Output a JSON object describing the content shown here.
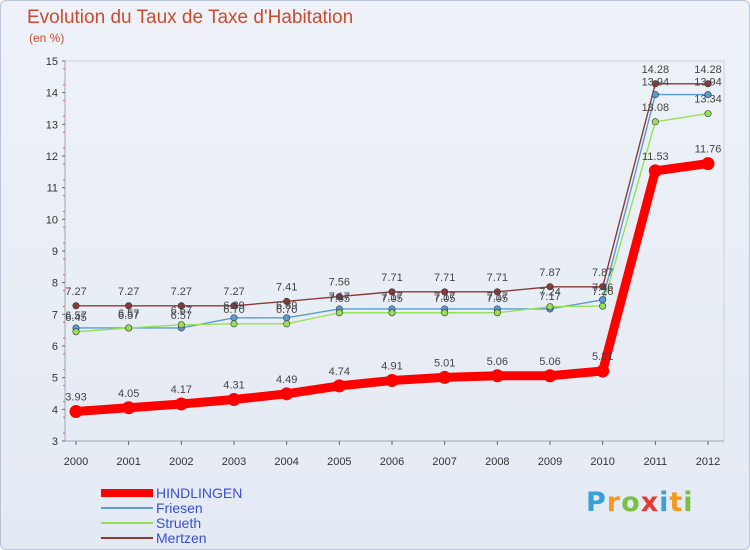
{
  "logo": {
    "letters": [
      "P",
      "r",
      "o",
      "x",
      "i",
      "t",
      "i"
    ],
    "colors": [
      "#3aa0d8",
      "#f39a1e",
      "#7bc043",
      "#e53935",
      "#3aa0d8",
      "#f39a1e",
      "#7bc043"
    ]
  },
  "chart_data": {
    "type": "line",
    "title": "Evolution du Taux de Taxe d'Habitation",
    "subtitle": "(en %)",
    "xlabel": "",
    "ylabel": "",
    "x": [
      "2000",
      "2001",
      "2002",
      "2003",
      "2004",
      "2005",
      "2006",
      "2007",
      "2008",
      "2009",
      "2010",
      "2011",
      "2012"
    ],
    "ylim": [
      3,
      15
    ],
    "yticks": [
      3,
      4,
      5,
      6,
      7,
      8,
      9,
      10,
      11,
      12,
      13,
      14,
      15
    ],
    "grid": false,
    "legend": "bottom-left",
    "series": [
      {
        "name": "HINDLINGEN",
        "color": "#ff0000",
        "values": [
          3.93,
          4.05,
          4.17,
          4.31,
          4.49,
          4.74,
          4.91,
          5.01,
          5.06,
          5.06,
          5.21,
          11.53,
          11.76
        ],
        "labels": [
          "3.93",
          "4.05",
          "4.17",
          "4.31",
          "4.49",
          "4.74",
          "4.91",
          "5.01",
          "5.06",
          "5.06",
          "5.21",
          "11.53",
          "11.76"
        ]
      },
      {
        "name": "Friesen",
        "color": "#5b9bd5",
        "values": [
          6.57,
          6.57,
          6.57,
          6.89,
          6.89,
          7.17,
          7.17,
          7.17,
          7.17,
          7.17,
          7.46,
          13.94,
          13.94
        ],
        "labels": [
          "6.57",
          "6.57",
          "6.57",
          "6.89",
          "6.89",
          "7.17",
          "7.17",
          "7.17",
          "7.17",
          "7.17",
          "7.46",
          "13.94",
          "13.94"
        ]
      },
      {
        "name": "Strueth",
        "color": "#99e05a",
        "values": [
          6.45,
          6.57,
          6.67,
          6.7,
          6.7,
          7.05,
          7.05,
          7.05,
          7.05,
          7.24,
          7.26,
          13.08,
          13.34
        ],
        "labels": [
          "6.45",
          "6.57",
          "6.67",
          "6.70",
          "6.70",
          "7.05",
          "7.05",
          "7.05",
          "7.05",
          "7.24",
          "7.26",
          "13.08",
          "13.34"
        ]
      },
      {
        "name": "Mertzen",
        "color": "#8b3a3a",
        "values": [
          7.27,
          7.27,
          7.27,
          7.27,
          7.41,
          7.56,
          7.71,
          7.71,
          7.71,
          7.87,
          7.87,
          14.28,
          14.28
        ],
        "labels": [
          "7.27",
          "7.27",
          "7.27",
          "7.27",
          "7.41",
          "7.56",
          "7.71",
          "7.71",
          "7.71",
          "7.87",
          "7.87",
          "14.28",
          "14.28"
        ]
      }
    ]
  }
}
